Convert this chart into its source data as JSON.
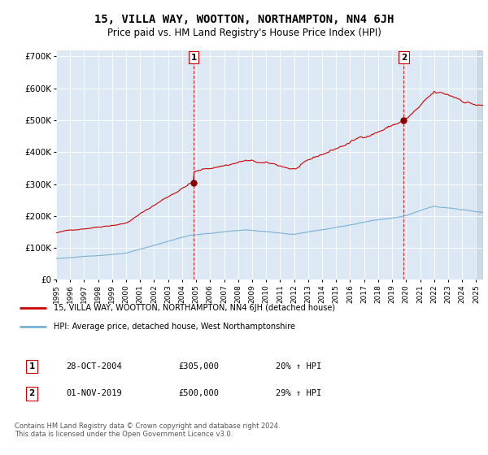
{
  "title": "15, VILLA WAY, WOOTTON, NORTHAMPTON, NN4 6JH",
  "subtitle": "Price paid vs. HM Land Registry's House Price Index (HPI)",
  "background_color": "#ffffff",
  "plot_bg_color": "#dce9f5",
  "legend_line1": "15, VILLA WAY, WOOTTON, NORTHAMPTON, NN4 6JH (detached house)",
  "legend_line2": "HPI: Average price, detached house, West Northamptonshire",
  "annotation1_label": "1",
  "annotation1_date": "28-OCT-2004",
  "annotation1_price": "£305,000",
  "annotation1_hpi": "20% ↑ HPI",
  "annotation2_label": "2",
  "annotation2_date": "01-NOV-2019",
  "annotation2_price": "£500,000",
  "annotation2_hpi": "29% ↑ HPI",
  "footer": "Contains HM Land Registry data © Crown copyright and database right 2024.\nThis data is licensed under the Open Government Licence v3.0.",
  "sale1_year": 2004.833,
  "sale1_value": 305000,
  "sale2_year": 2019.833,
  "sale2_value": 500000,
  "red_line_color": "#cc0000",
  "blue_line_color": "#7ab0d4",
  "ylim": [
    0,
    720000
  ],
  "xlim": [
    1995.0,
    2025.5
  ],
  "yticks": [
    0,
    100000,
    200000,
    300000,
    400000,
    500000,
    600000,
    700000
  ],
  "ytick_labels": [
    "£0",
    "£100K",
    "£200K",
    "£300K",
    "£400K",
    "£500K",
    "£600K",
    "£700K"
  ],
  "xticks": [
    1995,
    1996,
    1997,
    1998,
    1999,
    2000,
    2001,
    2002,
    2003,
    2004,
    2005,
    2006,
    2007,
    2008,
    2009,
    2010,
    2011,
    2012,
    2013,
    2014,
    2015,
    2016,
    2017,
    2018,
    2019,
    2020,
    2021,
    2022,
    2023,
    2024,
    2025
  ]
}
